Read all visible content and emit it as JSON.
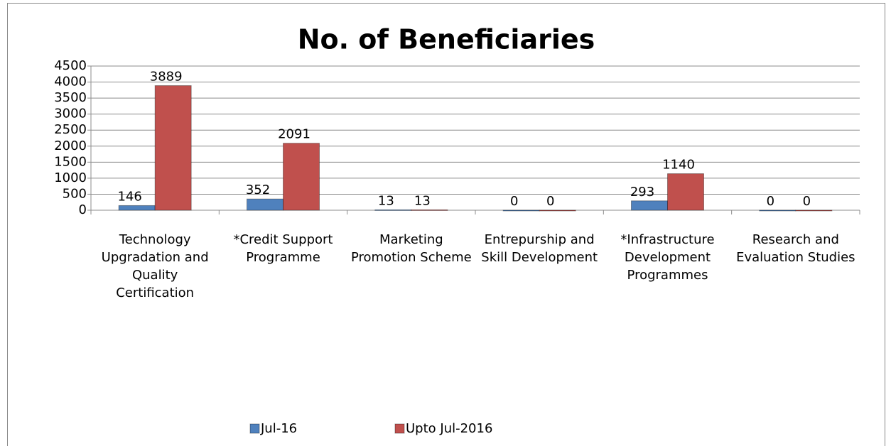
{
  "chart_data": {
    "type": "bar",
    "title": "No. of Beneficiaries",
    "categories": [
      "Technology Upgradation and Quality Certification",
      "*Credit Support Programme",
      "Marketing Promotion Scheme",
      "Entrepurship and Skill Development",
      "*Infrastructure Development Programmes",
      "Research and Evaluation Studies"
    ],
    "series": [
      {
        "name": "Jul-16",
        "color": "#4f81bd",
        "values": [
          146,
          352,
          13,
          0,
          293,
          0
        ]
      },
      {
        "name": "Upto Jul-2016",
        "color": "#c0504d",
        "values": [
          3889,
          2091,
          13,
          0,
          1140,
          0
        ]
      }
    ],
    "ylim": [
      0,
      4500
    ],
    "yticks": [
      0,
      500,
      1000,
      1500,
      2000,
      2500,
      3000,
      3500,
      4000,
      4500
    ],
    "grid": true,
    "legend": "bottom"
  }
}
